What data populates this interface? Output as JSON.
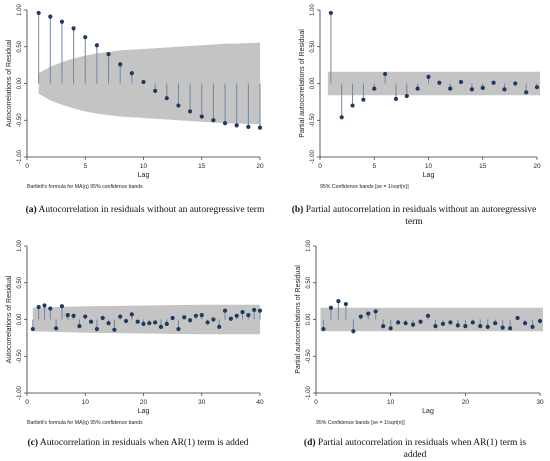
{
  "chart_data": [
    {
      "type": "stem",
      "panel": "a",
      "ylabel": "Autocorrelations of Residual",
      "xlabel": "Lag",
      "note": "Bartlett's formula for MA(q) 95% confidence bands",
      "xlim": [
        0,
        20
      ],
      "ylim": [
        -1.0,
        1.0
      ],
      "xticks": [
        0,
        5,
        10,
        15,
        20
      ],
      "xtick_labels": [
        "0",
        "5",
        "10",
        "15",
        "20"
      ],
      "yticks": [
        -1.0,
        -0.5,
        0.0,
        0.5,
        1.0
      ],
      "ytick_labels": [
        "-1.00",
        "-0.50",
        "0.00",
        "0.50",
        "1.00"
      ],
      "x": [
        1,
        2,
        3,
        4,
        5,
        6,
        7,
        8,
        9,
        10,
        11,
        12,
        13,
        14,
        15,
        16,
        17,
        18,
        19,
        20
      ],
      "values": [
        0.96,
        0.91,
        0.84,
        0.75,
        0.63,
        0.52,
        0.4,
        0.26,
        0.14,
        0.02,
        -0.1,
        -0.2,
        -0.3,
        -0.38,
        -0.45,
        -0.5,
        -0.54,
        -0.57,
        -0.59,
        -0.6
      ],
      "band": {
        "type": "bartlett",
        "x": [
          1,
          2,
          3,
          4,
          5,
          6,
          7,
          8,
          9,
          10,
          11,
          12,
          13,
          14,
          15,
          16,
          17,
          18,
          19,
          20
        ],
        "upper": [
          0.14,
          0.23,
          0.29,
          0.34,
          0.38,
          0.41,
          0.43,
          0.45,
          0.46,
          0.47,
          0.48,
          0.49,
          0.5,
          0.51,
          0.52,
          0.53,
          0.54,
          0.545,
          0.55,
          0.555
        ]
      }
    },
    {
      "type": "stem",
      "panel": "b",
      "ylabel": "Partial autocorrelations of Residual",
      "xlabel": "Lag",
      "note": "95% Confidence bands [se = 1/sqrt(n)]",
      "xlim": [
        0,
        20
      ],
      "ylim": [
        -1.0,
        1.0
      ],
      "xticks": [
        0,
        5,
        10,
        15,
        20
      ],
      "xtick_labels": [
        "0",
        "5",
        "10",
        "15",
        "20"
      ],
      "yticks": [
        -1.0,
        -0.5,
        0.0,
        0.5,
        1.0
      ],
      "ytick_labels": [
        "-1.00",
        "-0.50",
        "0.00",
        "0.50",
        "1.00"
      ],
      "x": [
        1,
        2,
        3,
        4,
        5,
        6,
        7,
        8,
        9,
        10,
        11,
        12,
        13,
        14,
        15,
        16,
        17,
        18,
        19,
        20
      ],
      "values": [
        0.96,
        -0.46,
        -0.3,
        -0.22,
        -0.07,
        0.13,
        -0.21,
        -0.17,
        -0.07,
        0.09,
        0.01,
        -0.07,
        0.02,
        -0.08,
        -0.06,
        0.01,
        -0.08,
        0.0,
        -0.12,
        -0.05
      ],
      "band": {
        "type": "constant",
        "upper": 0.16
      }
    },
    {
      "type": "stem",
      "panel": "c",
      "ylabel": "Autocorrelations of Residual",
      "xlabel": "Lag",
      "note": "Bartlett's formula for MA(q) 95% confidence bands",
      "xlim": [
        0,
        40
      ],
      "ylim": [
        -1.0,
        1.0
      ],
      "xticks": [
        0,
        10,
        20,
        30,
        40
      ],
      "xtick_labels": [
        "0",
        "10",
        "20",
        "30",
        "40"
      ],
      "yticks": [
        -1.0,
        -0.5,
        0.0,
        0.5,
        1.0
      ],
      "ytick_labels": [
        "-1.00",
        "-0.50",
        "0.00",
        "0.50",
        "1.00"
      ],
      "x": [
        1,
        2,
        3,
        4,
        5,
        6,
        7,
        8,
        9,
        10,
        11,
        12,
        13,
        14,
        15,
        16,
        17,
        18,
        19,
        20,
        21,
        22,
        23,
        24,
        25,
        26,
        27,
        28,
        29,
        30,
        31,
        32,
        33,
        34,
        35,
        36,
        37,
        38,
        39,
        40
      ],
      "values": [
        -0.13,
        0.17,
        0.19,
        0.15,
        -0.12,
        0.18,
        0.06,
        0.05,
        -0.09,
        0.04,
        -0.03,
        -0.13,
        0.02,
        -0.05,
        -0.14,
        0.04,
        -0.02,
        0.07,
        -0.03,
        -0.06,
        -0.05,
        -0.04,
        -0.1,
        -0.06,
        0.02,
        -0.13,
        0.03,
        -0.01,
        0.05,
        0.06,
        -0.04,
        0.0,
        -0.1,
        0.12,
        0.01,
        0.05,
        0.1,
        0.06,
        0.13,
        0.12
      ],
      "band": {
        "type": "bartlett",
        "x": [
          1,
          10,
          20,
          30,
          40
        ],
        "upper": [
          0.16,
          0.18,
          0.19,
          0.2,
          0.2
        ]
      }
    },
    {
      "type": "stem",
      "panel": "d",
      "ylabel": "Partial autocorrelations of Residual",
      "xlabel": "Lag",
      "note": "95% Confidence bands [se = 1/sqrt(n)]",
      "xlim": [
        0,
        30
      ],
      "ylim": [
        -1.0,
        1.0
      ],
      "xticks": [
        0,
        10,
        20,
        30
      ],
      "xtick_labels": [
        "0",
        "10",
        "20",
        "30"
      ],
      "yticks": [
        -1.0,
        -0.5,
        0.0,
        0.5,
        1.0
      ],
      "ytick_labels": [
        "-1.00",
        "-0.50",
        "0.00",
        "0.50",
        "1.00"
      ],
      "x": [
        1,
        2,
        3,
        4,
        5,
        6,
        7,
        8,
        9,
        10,
        11,
        12,
        13,
        14,
        15,
        16,
        17,
        18,
        19,
        20,
        21,
        22,
        23,
        24,
        25,
        26,
        27,
        28,
        29,
        30
      ],
      "values": [
        -0.13,
        0.16,
        0.25,
        0.21,
        -0.16,
        0.04,
        0.08,
        0.11,
        -0.09,
        -0.12,
        -0.04,
        -0.05,
        -0.07,
        -0.03,
        0.05,
        -0.09,
        -0.06,
        -0.04,
        -0.08,
        -0.09,
        -0.04,
        -0.09,
        -0.1,
        -0.05,
        -0.11,
        -0.12,
        0.02,
        -0.05,
        -0.1,
        -0.02
      ],
      "band": {
        "type": "constant",
        "upper": 0.16
      }
    }
  ],
  "captions": [
    {
      "label": "(a)",
      "text": " Autocorrelation in residuals without an autoregressive term"
    },
    {
      "label": "(b)",
      "text": " Partial autocorrelation in residuals without an autoregressive term"
    },
    {
      "label": "(c)",
      "text": " Autocorrelation in residuals when AR(1) term is added"
    },
    {
      "label": "(d)",
      "text": " Partial autocorrelation in residuals when AR(1) term is added"
    }
  ],
  "colors": {
    "band": "#c4c4c4",
    "stem": "#6f86a3",
    "marker": "#1e3a5f",
    "axis": "#333333"
  }
}
